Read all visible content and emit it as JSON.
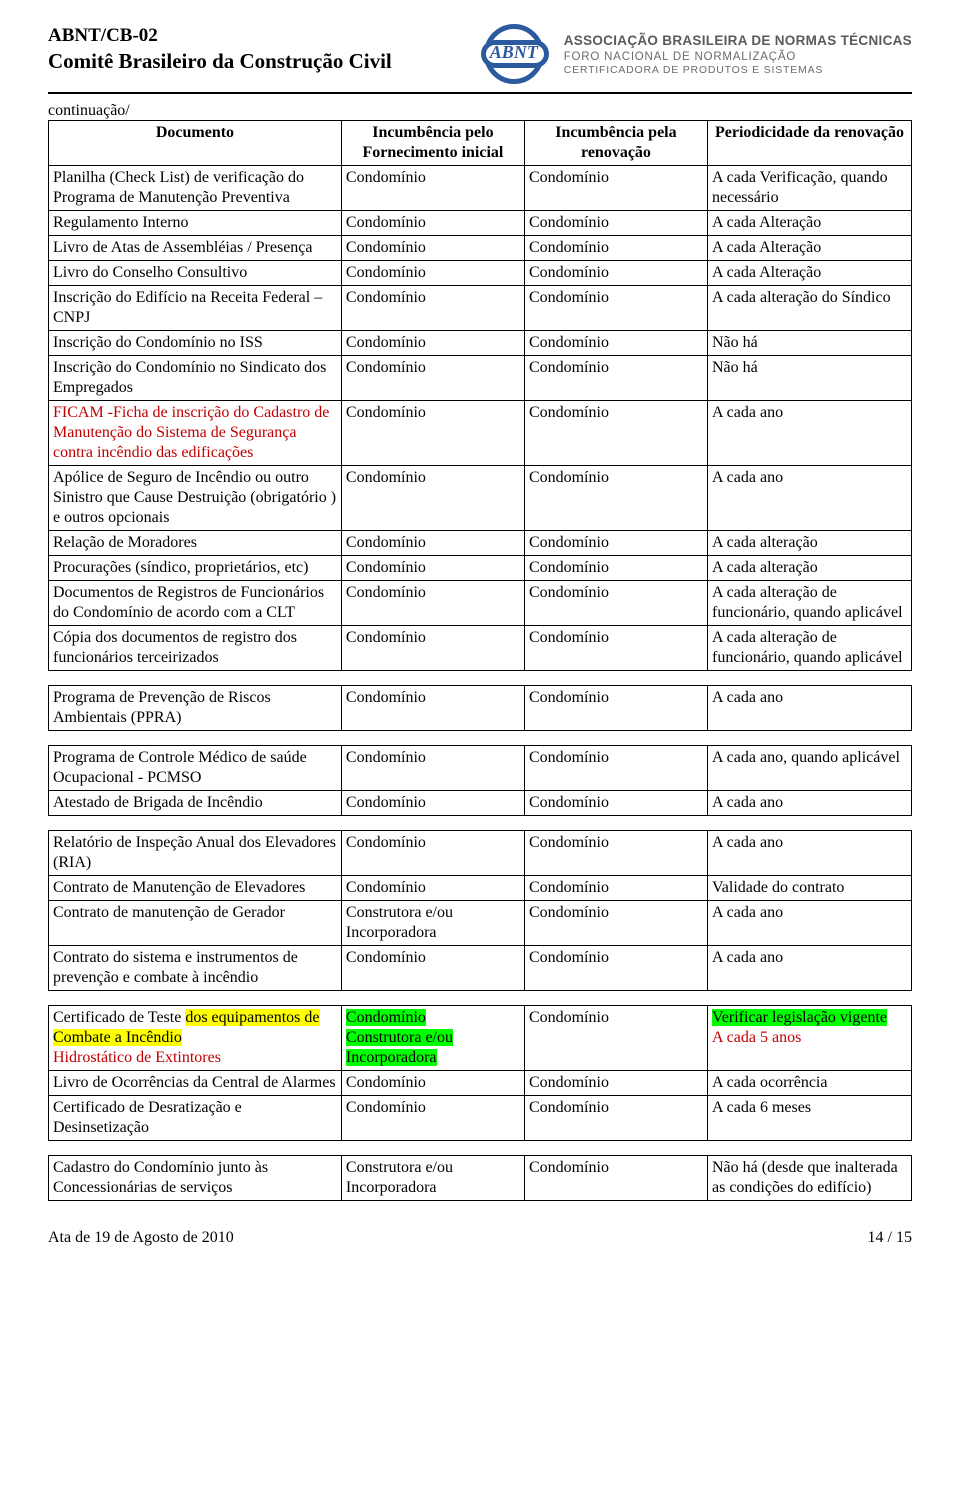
{
  "header": {
    "org_code": "ABNT/CB-02",
    "committee": "Comitê Brasileiro da Construção Civil",
    "assoc_l1": "ASSOCIAÇÃO BRASILEIRA DE NORMAS TÉCNICAS",
    "assoc_l2": "FORO NACIONAL DE NORMALIZAÇÃO",
    "assoc_l3": "CERTIFICADORA DE PRODUTOS E SISTEMAS",
    "logo_text": "ABNT"
  },
  "continuation": "continuação/",
  "columns": {
    "c1": "Documento",
    "c2": "Incumbência pelo Fornecimento inicial",
    "c3": "Incumbência pela renovação",
    "c4": "Periodicidade da renovação"
  },
  "rows": [
    {
      "doc": [
        {
          "t": "Planilha (Check List) de verificação do Programa de Manutenção Preventiva"
        }
      ],
      "f": [
        {
          "t": "Condomínio"
        }
      ],
      "r": [
        {
          "t": "Condomínio"
        }
      ],
      "p": [
        {
          "t": "A cada Verificação, quando necessário"
        }
      ]
    },
    {
      "doc": [
        {
          "t": "Regulamento Interno"
        }
      ],
      "f": [
        {
          "t": "Condomínio"
        }
      ],
      "r": [
        {
          "t": "Condomínio"
        }
      ],
      "p": [
        {
          "t": "A cada Alteração"
        }
      ]
    },
    {
      "doc": [
        {
          "t": "Livro de Atas de Assembléias / Presença"
        }
      ],
      "f": [
        {
          "t": "Condomínio"
        }
      ],
      "r": [
        {
          "t": "Condomínio"
        }
      ],
      "p": [
        {
          "t": "A cada Alteração"
        }
      ]
    },
    {
      "doc": [
        {
          "t": "Livro do Conselho Consultivo"
        }
      ],
      "f": [
        {
          "t": "Condomínio"
        }
      ],
      "r": [
        {
          "t": "Condomínio"
        }
      ],
      "p": [
        {
          "t": "A cada Alteração"
        }
      ]
    },
    {
      "doc": [
        {
          "t": "Inscrição do Edifício na Receita Federal – CNPJ"
        }
      ],
      "f": [
        {
          "t": "Condomínio"
        }
      ],
      "r": [
        {
          "t": "Condomínio"
        }
      ],
      "p": [
        {
          "t": "A cada alteração do Síndico"
        }
      ]
    },
    {
      "doc": [
        {
          "t": "Inscrição do Condomínio no ISS"
        }
      ],
      "f": [
        {
          "t": "Condomínio"
        }
      ],
      "r": [
        {
          "t": "Condomínio"
        }
      ],
      "p": [
        {
          "t": "Não há"
        }
      ]
    },
    {
      "doc": [
        {
          "t": "Inscrição do Condomínio no Sindicato dos Empregados"
        }
      ],
      "f": [
        {
          "t": "Condomínio"
        }
      ],
      "r": [
        {
          "t": "Condomínio"
        }
      ],
      "p": [
        {
          "t": "Não há"
        }
      ]
    },
    {
      "doc": [
        {
          "t": "FICAM -Ficha de inscrição do Cadastro de Manutenção do Sistema de Segurança contra incêndio das edificações",
          "c": "red"
        }
      ],
      "f": [
        {
          "t": "Condomínio"
        }
      ],
      "r": [
        {
          "t": "Condomínio"
        }
      ],
      "p": [
        {
          "t": "A cada ano"
        }
      ]
    },
    {
      "doc": [
        {
          "t": "Apólice de Seguro de Incêndio ou outro Sinistro que Cause Destruição (obrigatório ) e outros opcionais"
        }
      ],
      "f": [
        {
          "t": "Condomínio"
        }
      ],
      "r": [
        {
          "t": "Condomínio"
        }
      ],
      "p": [
        {
          "t": "A cada ano"
        }
      ]
    },
    {
      "doc": [
        {
          "t": "Relação de Moradores"
        }
      ],
      "f": [
        {
          "t": "Condomínio"
        }
      ],
      "r": [
        {
          "t": "Condomínio"
        }
      ],
      "p": [
        {
          "t": "A cada alteração"
        }
      ]
    },
    {
      "doc": [
        {
          "t": "Procurações (síndico, proprietários, etc)"
        }
      ],
      "f": [
        {
          "t": "Condomínio"
        }
      ],
      "r": [
        {
          "t": "Condomínio"
        }
      ],
      "p": [
        {
          "t": "A cada alteração"
        }
      ]
    },
    {
      "doc": [
        {
          "t": "Documentos de Registros de Funcionários do Condomínio de acordo com a CLT"
        }
      ],
      "f": [
        {
          "t": "Condomínio"
        }
      ],
      "r": [
        {
          "t": "Condomínio"
        }
      ],
      "p": [
        {
          "t": "A cada alteração de funcionário, quando aplicável"
        }
      ]
    },
    {
      "doc": [
        {
          "t": "Cópia dos documentos de registro dos funcionários terceirizados"
        }
      ],
      "f": [
        {
          "t": "Condomínio"
        }
      ],
      "r": [
        {
          "t": "Condomínio"
        }
      ],
      "p": [
        {
          "t": "A cada alteração de funcionário, quando aplicável"
        }
      ]
    },
    {
      "doc": [
        {
          "t": "Programa de Prevenção de Riscos Ambientais (PPRA)"
        }
      ],
      "f": [
        {
          "t": "Condomínio"
        }
      ],
      "r": [
        {
          "t": "Condomínio"
        }
      ],
      "p": [
        {
          "t": "A cada ano"
        }
      ]
    },
    {
      "doc": [
        {
          "t": "Programa de Controle Médico de saúde Ocupacional - PCMSO"
        }
      ],
      "f": [
        {
          "t": "Condomínio"
        }
      ],
      "r": [
        {
          "t": "Condomínio"
        }
      ],
      "p": [
        {
          "t": "A cada ano, quando aplicável"
        }
      ]
    },
    {
      "doc": [
        {
          "t": "Atestado de Brigada de Incêndio"
        }
      ],
      "f": [
        {
          "t": "Condomínio"
        }
      ],
      "r": [
        {
          "t": "Condomínio"
        }
      ],
      "p": [
        {
          "t": "A cada ano"
        }
      ]
    },
    {
      "doc": [
        {
          "t": "Relatório de Inspeção Anual dos Elevadores (RIA)"
        }
      ],
      "f": [
        {
          "t": "Condomínio"
        }
      ],
      "r": [
        {
          "t": "Condomínio"
        }
      ],
      "p": [
        {
          "t": "A cada ano"
        }
      ]
    },
    {
      "doc": [
        {
          "t": "Contrato de Manutenção de Elevadores"
        }
      ],
      "f": [
        {
          "t": "Condomínio"
        }
      ],
      "r": [
        {
          "t": "Condomínio"
        }
      ],
      "p": [
        {
          "t": "Validade do contrato"
        }
      ]
    },
    {
      "doc": [
        {
          "t": "Contrato de manutenção de Gerador"
        }
      ],
      "f": [
        {
          "t": "Construtora e/ou Incorporadora"
        }
      ],
      "r": [
        {
          "t": "Condomínio"
        }
      ],
      "p": [
        {
          "t": "A cada ano"
        }
      ]
    },
    {
      "doc": [
        {
          "t": "Contrato do sistema e instrumentos de prevenção e combate à incêndio"
        }
      ],
      "f": [
        {
          "t": "Condomínio"
        }
      ],
      "r": [
        {
          "t": "Condomínio"
        }
      ],
      "p": [
        {
          "t": "A cada ano"
        }
      ]
    },
    {
      "doc": [
        {
          "t": "Certificado de Teste "
        },
        {
          "t": "dos equipamentos de Combate a Incêndio",
          "c": "hly"
        },
        {
          "t": " "
        },
        {
          "t": "Hidrostático de Extintores",
          "c": "red"
        }
      ],
      "f": [
        {
          "t": "Condomínio",
          "c": "hlg"
        },
        {
          "t": " "
        },
        {
          "t": "Construtora e/ou Incorporadora",
          "c": "hlg"
        }
      ],
      "r": [
        {
          "t": "Condomínio"
        }
      ],
      "p": [
        {
          "t": "Verificar legislação vigente",
          "c": "hlg"
        },
        {
          "t": " "
        },
        {
          "t": "A cada 5 anos",
          "c": "red"
        }
      ]
    },
    {
      "doc": [
        {
          "t": "Livro de Ocorrências da Central de Alarmes"
        }
      ],
      "f": [
        {
          "t": "Condomínio"
        }
      ],
      "r": [
        {
          "t": "Condomínio"
        }
      ],
      "p": [
        {
          "t": "A cada ocorrência"
        }
      ]
    },
    {
      "doc": [
        {
          "t": "Certificado de Desratização e Desinsetização"
        }
      ],
      "f": [
        {
          "t": "Condomínio"
        }
      ],
      "r": [
        {
          "t": "Condomínio"
        }
      ],
      "p": [
        {
          "t": "A cada 6 meses"
        }
      ]
    },
    {
      "doc": [
        {
          "t": "Cadastro do Condomínio junto às Concessionárias de serviços"
        }
      ],
      "f": [
        {
          "t": "Construtora e/ou Incorporadora"
        }
      ],
      "r": [
        {
          "t": "Condomínio"
        }
      ],
      "p": [
        {
          "t": "Não há (desde que inalterada as condições do edifício)"
        }
      ]
    }
  ],
  "spacer_after": [
    12,
    13,
    15,
    19,
    22
  ],
  "footer": {
    "left": "Ata de 19 de Agosto de 2010",
    "right": "14 / 15"
  }
}
